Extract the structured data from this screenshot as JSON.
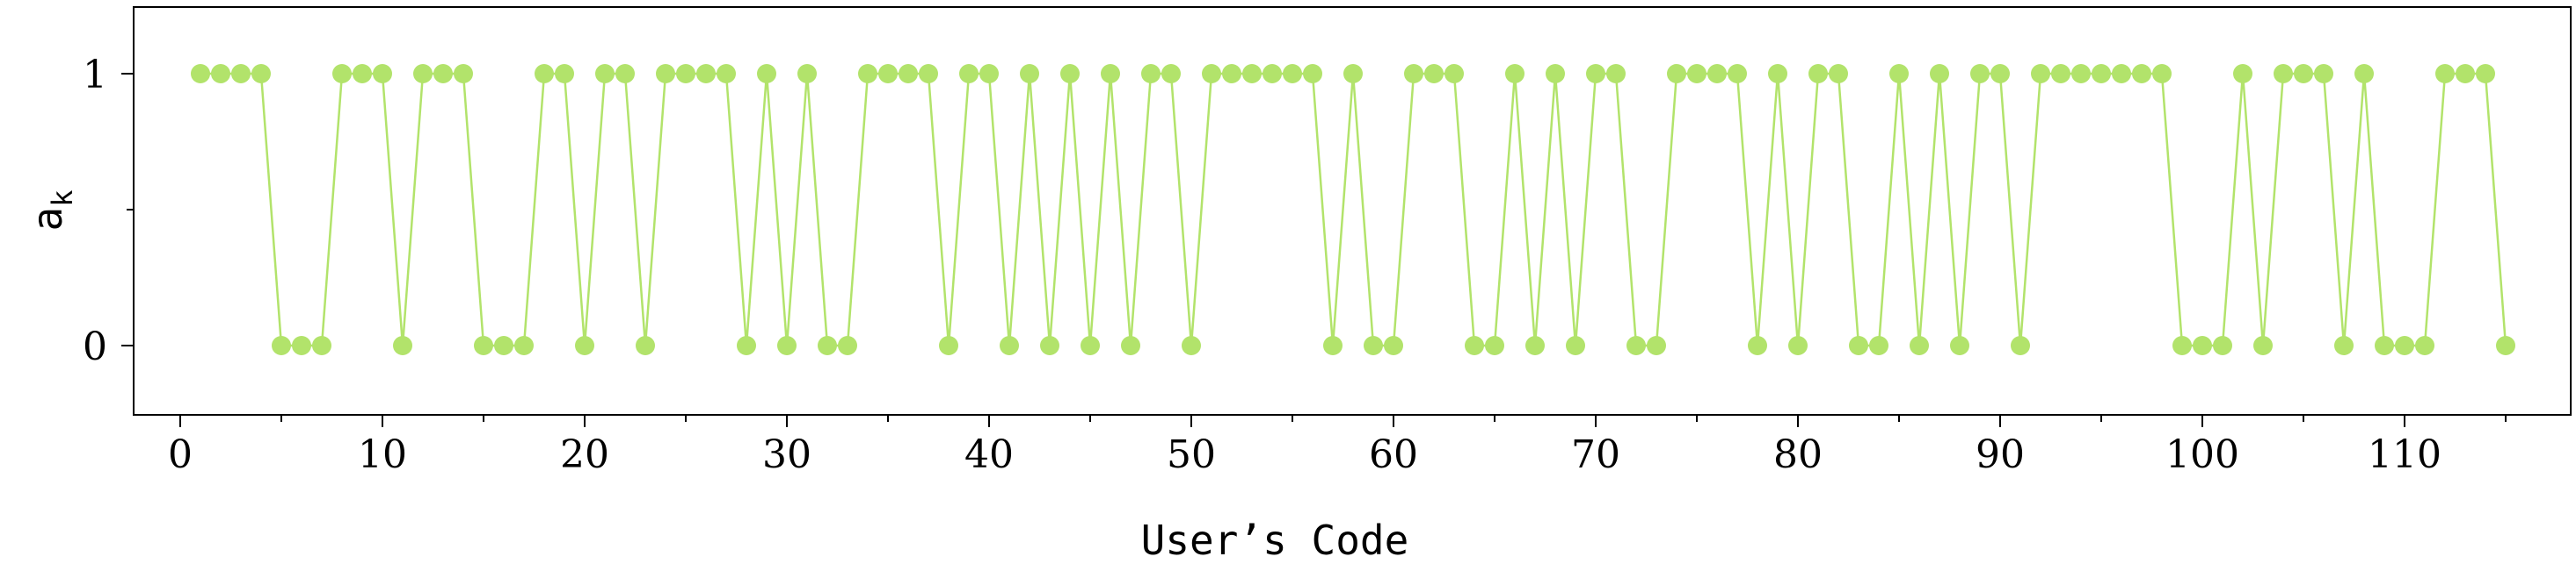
{
  "chart_data": {
    "type": "line",
    "xlabel": "User’s Code",
    "ylabel": "a",
    "ylabel_subscript": "k",
    "xlim": [
      -2,
      118
    ],
    "ylim": [
      -0.25,
      1.25
    ],
    "xticks": [
      0,
      10,
      20,
      30,
      40,
      50,
      60,
      70,
      80,
      90,
      100,
      110
    ],
    "xtick_labels": [
      "0",
      "10",
      "20",
      "30",
      "40",
      "50",
      "60",
      "70",
      "80",
      "90",
      "100",
      "110"
    ],
    "yticks": [
      0,
      1
    ],
    "ytick_labels": [
      "0",
      "1"
    ],
    "grid": false,
    "color": "#b2e36b",
    "marker": "circle",
    "x": [
      1,
      2,
      3,
      4,
      5,
      6,
      7,
      8,
      9,
      10,
      11,
      12,
      13,
      14,
      15,
      16,
      17,
      18,
      19,
      20,
      21,
      22,
      23,
      24,
      25,
      26,
      27,
      28,
      29,
      30,
      31,
      32,
      33,
      34,
      35,
      36,
      37,
      38,
      39,
      40,
      41,
      42,
      43,
      44,
      45,
      46,
      47,
      48,
      49,
      50,
      51,
      52,
      53,
      54,
      55,
      56,
      57,
      58,
      59,
      60,
      61,
      62,
      63,
      64,
      65,
      66,
      67,
      68,
      69,
      70,
      71,
      72,
      73,
      74,
      75,
      76,
      77,
      78,
      79,
      80,
      81,
      82,
      83,
      84,
      85,
      86,
      87,
      88,
      89,
      90,
      91,
      92,
      93,
      94,
      95,
      96,
      97,
      98,
      99,
      100,
      101,
      102,
      103,
      104,
      105,
      106,
      107,
      108,
      109,
      110,
      111,
      112,
      113,
      114,
      115
    ],
    "y": [
      1,
      1,
      1,
      1,
      0,
      0,
      0,
      1,
      1,
      1,
      0,
      1,
      1,
      1,
      0,
      0,
      0,
      1,
      1,
      0,
      1,
      1,
      0,
      1,
      1,
      1,
      1,
      0,
      1,
      0,
      1,
      0,
      0,
      1,
      1,
      1,
      1,
      0,
      1,
      1,
      0,
      1,
      0,
      1,
      0,
      1,
      0,
      1,
      1,
      0,
      1,
      1,
      1,
      1,
      1,
      1,
      0,
      1,
      0,
      0,
      1,
      1,
      1,
      0,
      0,
      1,
      0,
      1,
      0,
      1,
      1,
      0,
      0,
      1,
      1,
      1,
      1,
      0,
      1,
      0,
      1,
      1,
      0,
      0,
      1,
      0,
      1,
      0,
      1,
      1,
      0,
      1,
      1,
      1,
      1,
      1,
      1,
      1,
      0,
      0,
      0,
      1,
      0,
      1,
      1,
      1,
      0,
      1,
      0,
      0,
      0,
      1,
      1,
      1,
      0
    ]
  }
}
